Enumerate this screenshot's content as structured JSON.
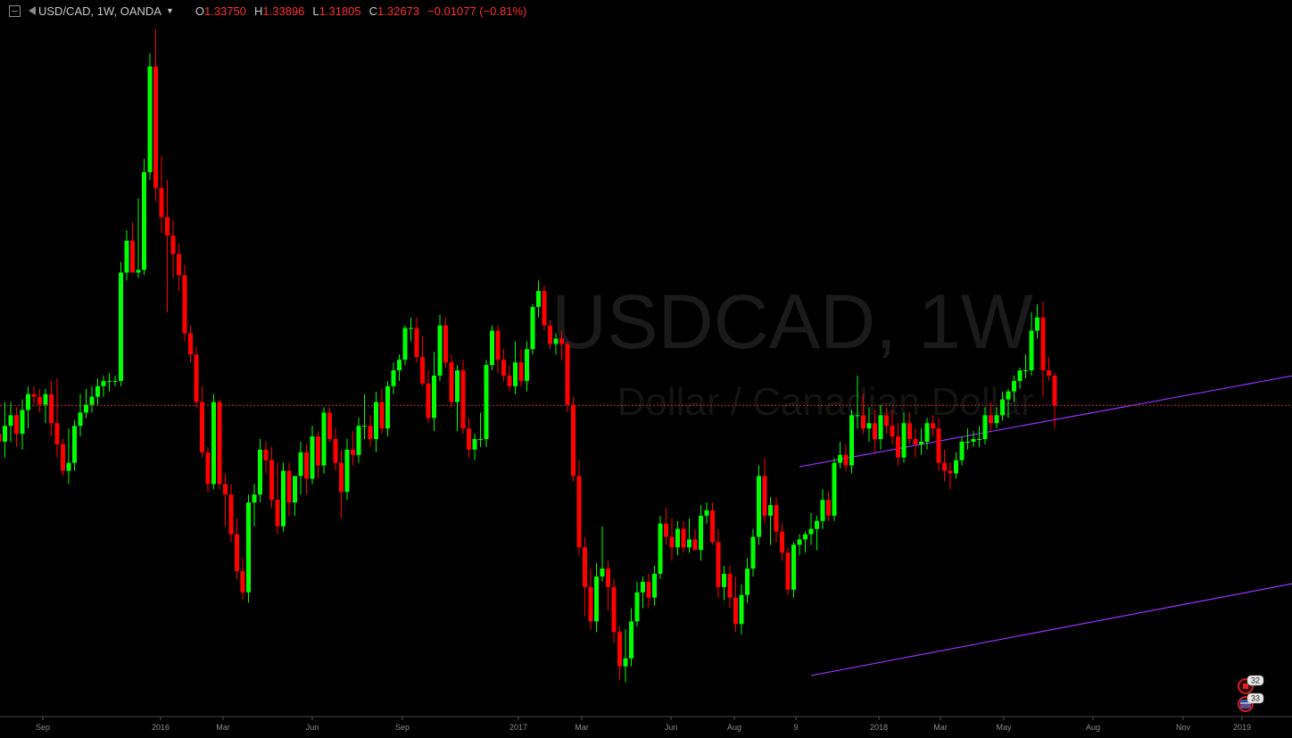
{
  "legend": {
    "symbol_title": "USD/CAD, 1W, OANDA",
    "open_label": "O",
    "open_value": "1.33750",
    "high_label": "H",
    "high_value": "1.33896",
    "low_label": "L",
    "low_value": "1.31805",
    "close_label": "C",
    "close_value": "1.32673",
    "change": "−0.01077 (−0.81%)"
  },
  "watermark": {
    "symbol": "USDCAD, 1W",
    "description": "Dollar / Canadian Dollar"
  },
  "badges": [
    {
      "icon": "canada-flag-icon",
      "label": "32"
    },
    {
      "icon": "us-flag-icon",
      "label": "33"
    }
  ],
  "colors": {
    "up": "#00ff00",
    "down": "#ff0000",
    "channel": "#9b30ff",
    "price_line": "#c83232",
    "background": "#000000"
  },
  "chart_data": {
    "type": "candlestick",
    "symbol": "USD/CAD",
    "interval": "1W",
    "x_tick_labels": [
      "Sep",
      "2016",
      "Mar",
      "Jun",
      "Sep",
      "2017",
      "Mar",
      "Jun",
      "Aug",
      "9",
      "2018",
      "Mar",
      "May",
      "Aug",
      "Nov",
      "2019"
    ],
    "current_price": 1.32673,
    "y_range": [
      1.21,
      1.47
    ],
    "channel": [
      {
        "name": "upper",
        "from": {
          "bar": 138,
          "price": 1.3035
        },
        "to": {
          "bar": 235,
          "price": 1.3428
        }
      },
      {
        "name": "lower",
        "from": {
          "bar": 140,
          "price": 1.2245
        },
        "to": {
          "bar": 235,
          "price": 1.2643
        }
      }
    ],
    "candles": [
      {
        "o": 1.316,
        "h": 1.323,
        "l": 1.291,
        "c": 1.313
      },
      {
        "o": 1.313,
        "h": 1.328,
        "l": 1.307,
        "c": 1.319
      },
      {
        "o": 1.319,
        "h": 1.328,
        "l": 1.313,
        "c": 1.323
      },
      {
        "o": 1.323,
        "h": 1.326,
        "l": 1.311,
        "c": 1.316
      },
      {
        "o": 1.316,
        "h": 1.329,
        "l": 1.31,
        "c": 1.325
      },
      {
        "o": 1.325,
        "h": 1.334,
        "l": 1.318,
        "c": 1.331
      },
      {
        "o": 1.331,
        "h": 1.334,
        "l": 1.327,
        "c": 1.33
      },
      {
        "o": 1.33,
        "h": 1.333,
        "l": 1.324,
        "c": 1.327
      },
      {
        "o": 1.327,
        "h": 1.333,
        "l": 1.32,
        "c": 1.331
      },
      {
        "o": 1.331,
        "h": 1.336,
        "l": 1.315,
        "c": 1.32
      },
      {
        "o": 1.32,
        "h": 1.337,
        "l": 1.307,
        "c": 1.312
      },
      {
        "o": 1.312,
        "h": 1.314,
        "l": 1.3,
        "c": 1.302
      },
      {
        "o": 1.302,
        "h": 1.318,
        "l": 1.297,
        "c": 1.305
      },
      {
        "o": 1.305,
        "h": 1.321,
        "l": 1.302,
        "c": 1.319
      },
      {
        "o": 1.319,
        "h": 1.331,
        "l": 1.315,
        "c": 1.324
      },
      {
        "o": 1.324,
        "h": 1.333,
        "l": 1.322,
        "c": 1.327
      },
      {
        "o": 1.327,
        "h": 1.334,
        "l": 1.324,
        "c": 1.33
      },
      {
        "o": 1.33,
        "h": 1.337,
        "l": 1.327,
        "c": 1.334
      },
      {
        "o": 1.334,
        "h": 1.338,
        "l": 1.33,
        "c": 1.336
      },
      {
        "o": 1.336,
        "h": 1.339,
        "l": 1.332,
        "c": 1.336
      },
      {
        "o": 1.336,
        "h": 1.338,
        "l": 1.334,
        "c": 1.336
      },
      {
        "o": 1.336,
        "h": 1.381,
        "l": 1.334,
        "c": 1.377
      },
      {
        "o": 1.377,
        "h": 1.393,
        "l": 1.374,
        "c": 1.389
      },
      {
        "o": 1.389,
        "h": 1.396,
        "l": 1.377,
        "c": 1.377
      },
      {
        "o": 1.377,
        "h": 1.405,
        "l": 1.375,
        "c": 1.378
      },
      {
        "o": 1.378,
        "h": 1.42,
        "l": 1.376,
        "c": 1.415
      },
      {
        "o": 1.415,
        "h": 1.46,
        "l": 1.412,
        "c": 1.455
      },
      {
        "o": 1.455,
        "h": 1.469,
        "l": 1.404,
        "c": 1.409
      },
      {
        "o": 1.409,
        "h": 1.421,
        "l": 1.392,
        "c": 1.398
      },
      {
        "o": 1.398,
        "h": 1.412,
        "l": 1.362,
        "c": 1.391
      },
      {
        "o": 1.391,
        "h": 1.397,
        "l": 1.375,
        "c": 1.384
      },
      {
        "o": 1.384,
        "h": 1.388,
        "l": 1.37,
        "c": 1.376
      },
      {
        "o": 1.376,
        "h": 1.38,
        "l": 1.351,
        "c": 1.354
      },
      {
        "o": 1.354,
        "h": 1.357,
        "l": 1.343,
        "c": 1.346
      },
      {
        "o": 1.346,
        "h": 1.349,
        "l": 1.326,
        "c": 1.328
      },
      {
        "o": 1.328,
        "h": 1.334,
        "l": 1.307,
        "c": 1.309
      },
      {
        "o": 1.309,
        "h": 1.311,
        "l": 1.294,
        "c": 1.297
      },
      {
        "o": 1.297,
        "h": 1.331,
        "l": 1.295,
        "c": 1.328
      },
      {
        "o": 1.328,
        "h": 1.329,
        "l": 1.295,
        "c": 1.297
      },
      {
        "o": 1.297,
        "h": 1.301,
        "l": 1.281,
        "c": 1.293
      },
      {
        "o": 1.293,
        "h": 1.297,
        "l": 1.275,
        "c": 1.278
      },
      {
        "o": 1.278,
        "h": 1.284,
        "l": 1.261,
        "c": 1.264
      },
      {
        "o": 1.264,
        "h": 1.269,
        "l": 1.253,
        "c": 1.256
      },
      {
        "o": 1.256,
        "h": 1.293,
        "l": 1.252,
        "c": 1.29
      },
      {
        "o": 1.29,
        "h": 1.297,
        "l": 1.281,
        "c": 1.293
      },
      {
        "o": 1.293,
        "h": 1.314,
        "l": 1.29,
        "c": 1.31
      },
      {
        "o": 1.31,
        "h": 1.313,
        "l": 1.301,
        "c": 1.306
      },
      {
        "o": 1.306,
        "h": 1.311,
        "l": 1.288,
        "c": 1.291
      },
      {
        "o": 1.291,
        "h": 1.305,
        "l": 1.278,
        "c": 1.281
      },
      {
        "o": 1.281,
        "h": 1.305,
        "l": 1.279,
        "c": 1.302
      },
      {
        "o": 1.302,
        "h": 1.305,
        "l": 1.285,
        "c": 1.29
      },
      {
        "o": 1.29,
        "h": 1.3,
        "l": 1.285,
        "c": 1.3
      },
      {
        "o": 1.3,
        "h": 1.313,
        "l": 1.293,
        "c": 1.309
      },
      {
        "o": 1.309,
        "h": 1.312,
        "l": 1.293,
        "c": 1.299
      },
      {
        "o": 1.299,
        "h": 1.319,
        "l": 1.297,
        "c": 1.315
      },
      {
        "o": 1.315,
        "h": 1.317,
        "l": 1.299,
        "c": 1.304
      },
      {
        "o": 1.304,
        "h": 1.326,
        "l": 1.301,
        "c": 1.324
      },
      {
        "o": 1.324,
        "h": 1.326,
        "l": 1.313,
        "c": 1.314
      },
      {
        "o": 1.314,
        "h": 1.318,
        "l": 1.302,
        "c": 1.305
      },
      {
        "o": 1.305,
        "h": 1.31,
        "l": 1.284,
        "c": 1.294
      },
      {
        "o": 1.294,
        "h": 1.314,
        "l": 1.291,
        "c": 1.31
      },
      {
        "o": 1.31,
        "h": 1.317,
        "l": 1.304,
        "c": 1.308
      },
      {
        "o": 1.308,
        "h": 1.322,
        "l": 1.305,
        "c": 1.319
      },
      {
        "o": 1.319,
        "h": 1.331,
        "l": 1.314,
        "c": 1.319
      },
      {
        "o": 1.319,
        "h": 1.323,
        "l": 1.311,
        "c": 1.314
      },
      {
        "o": 1.314,
        "h": 1.332,
        "l": 1.309,
        "c": 1.328
      },
      {
        "o": 1.328,
        "h": 1.333,
        "l": 1.316,
        "c": 1.318
      },
      {
        "o": 1.318,
        "h": 1.336,
        "l": 1.315,
        "c": 1.334
      },
      {
        "o": 1.334,
        "h": 1.343,
        "l": 1.331,
        "c": 1.34
      },
      {
        "o": 1.34,
        "h": 1.346,
        "l": 1.336,
        "c": 1.344
      },
      {
        "o": 1.344,
        "h": 1.357,
        "l": 1.342,
        "c": 1.356
      },
      {
        "o": 1.356,
        "h": 1.36,
        "l": 1.351,
        "c": 1.356
      },
      {
        "o": 1.356,
        "h": 1.36,
        "l": 1.343,
        "c": 1.345
      },
      {
        "o": 1.345,
        "h": 1.353,
        "l": 1.334,
        "c": 1.335
      },
      {
        "o": 1.335,
        "h": 1.34,
        "l": 1.32,
        "c": 1.322
      },
      {
        "o": 1.322,
        "h": 1.347,
        "l": 1.317,
        "c": 1.338
      },
      {
        "o": 1.338,
        "h": 1.361,
        "l": 1.336,
        "c": 1.357
      },
      {
        "o": 1.357,
        "h": 1.36,
        "l": 1.341,
        "c": 1.343
      },
      {
        "o": 1.343,
        "h": 1.346,
        "l": 1.326,
        "c": 1.328
      },
      {
        "o": 1.328,
        "h": 1.342,
        "l": 1.317,
        "c": 1.34
      },
      {
        "o": 1.34,
        "h": 1.344,
        "l": 1.316,
        "c": 1.318
      },
      {
        "o": 1.318,
        "h": 1.322,
        "l": 1.307,
        "c": 1.31
      },
      {
        "o": 1.31,
        "h": 1.316,
        "l": 1.306,
        "c": 1.314
      },
      {
        "o": 1.314,
        "h": 1.324,
        "l": 1.311,
        "c": 1.314
      },
      {
        "o": 1.314,
        "h": 1.344,
        "l": 1.311,
        "c": 1.342
      },
      {
        "o": 1.342,
        "h": 1.357,
        "l": 1.34,
        "c": 1.355
      },
      {
        "o": 1.355,
        "h": 1.357,
        "l": 1.339,
        "c": 1.344
      },
      {
        "o": 1.344,
        "h": 1.348,
        "l": 1.336,
        "c": 1.338
      },
      {
        "o": 1.338,
        "h": 1.342,
        "l": 1.332,
        "c": 1.334
      },
      {
        "o": 1.334,
        "h": 1.351,
        "l": 1.331,
        "c": 1.343
      },
      {
        "o": 1.343,
        "h": 1.348,
        "l": 1.334,
        "c": 1.336
      },
      {
        "o": 1.336,
        "h": 1.351,
        "l": 1.332,
        "c": 1.348
      },
      {
        "o": 1.348,
        "h": 1.365,
        "l": 1.346,
        "c": 1.364
      },
      {
        "o": 1.364,
        "h": 1.374,
        "l": 1.36,
        "c": 1.37
      },
      {
        "o": 1.37,
        "h": 1.372,
        "l": 1.355,
        "c": 1.357
      },
      {
        "o": 1.357,
        "h": 1.359,
        "l": 1.348,
        "c": 1.35
      },
      {
        "o": 1.35,
        "h": 1.354,
        "l": 1.346,
        "c": 1.352
      },
      {
        "o": 1.352,
        "h": 1.355,
        "l": 1.344,
        "c": 1.35
      },
      {
        "o": 1.35,
        "h": 1.351,
        "l": 1.324,
        "c": 1.327
      },
      {
        "o": 1.327,
        "h": 1.33,
        "l": 1.298,
        "c": 1.3
      },
      {
        "o": 1.3,
        "h": 1.306,
        "l": 1.27,
        "c": 1.273
      },
      {
        "o": 1.273,
        "h": 1.277,
        "l": 1.247,
        "c": 1.258
      },
      {
        "o": 1.258,
        "h": 1.265,
        "l": 1.242,
        "c": 1.245
      },
      {
        "o": 1.245,
        "h": 1.267,
        "l": 1.241,
        "c": 1.262
      },
      {
        "o": 1.262,
        "h": 1.281,
        "l": 1.26,
        "c": 1.265
      },
      {
        "o": 1.265,
        "h": 1.268,
        "l": 1.249,
        "c": 1.258
      },
      {
        "o": 1.258,
        "h": 1.261,
        "l": 1.237,
        "c": 1.241
      },
      {
        "o": 1.241,
        "h": 1.243,
        "l": 1.223,
        "c": 1.228
      },
      {
        "o": 1.228,
        "h": 1.242,
        "l": 1.222,
        "c": 1.231
      },
      {
        "o": 1.231,
        "h": 1.25,
        "l": 1.228,
        "c": 1.245
      },
      {
        "o": 1.245,
        "h": 1.26,
        "l": 1.243,
        "c": 1.256
      },
      {
        "o": 1.256,
        "h": 1.262,
        "l": 1.25,
        "c": 1.26
      },
      {
        "o": 1.26,
        "h": 1.263,
        "l": 1.25,
        "c": 1.254
      },
      {
        "o": 1.254,
        "h": 1.266,
        "l": 1.251,
        "c": 1.263
      },
      {
        "o": 1.263,
        "h": 1.285,
        "l": 1.261,
        "c": 1.282
      },
      {
        "o": 1.282,
        "h": 1.288,
        "l": 1.274,
        "c": 1.277
      },
      {
        "o": 1.277,
        "h": 1.284,
        "l": 1.268,
        "c": 1.273
      },
      {
        "o": 1.273,
        "h": 1.283,
        "l": 1.27,
        "c": 1.28
      },
      {
        "o": 1.28,
        "h": 1.283,
        "l": 1.271,
        "c": 1.273
      },
      {
        "o": 1.273,
        "h": 1.284,
        "l": 1.271,
        "c": 1.276
      },
      {
        "o": 1.276,
        "h": 1.28,
        "l": 1.272,
        "c": 1.272
      },
      {
        "o": 1.272,
        "h": 1.289,
        "l": 1.268,
        "c": 1.285
      },
      {
        "o": 1.285,
        "h": 1.29,
        "l": 1.282,
        "c": 1.287
      },
      {
        "o": 1.287,
        "h": 1.29,
        "l": 1.274,
        "c": 1.275
      },
      {
        "o": 1.275,
        "h": 1.28,
        "l": 1.254,
        "c": 1.258
      },
      {
        "o": 1.258,
        "h": 1.266,
        "l": 1.253,
        "c": 1.263
      },
      {
        "o": 1.263,
        "h": 1.266,
        "l": 1.25,
        "c": 1.254
      },
      {
        "o": 1.254,
        "h": 1.262,
        "l": 1.241,
        "c": 1.244
      },
      {
        "o": 1.244,
        "h": 1.259,
        "l": 1.24,
        "c": 1.255
      },
      {
        "o": 1.255,
        "h": 1.269,
        "l": 1.252,
        "c": 1.265
      },
      {
        "o": 1.265,
        "h": 1.28,
        "l": 1.262,
        "c": 1.277
      },
      {
        "o": 1.277,
        "h": 1.304,
        "l": 1.274,
        "c": 1.3
      },
      {
        "o": 1.3,
        "h": 1.307,
        "l": 1.282,
        "c": 1.285
      },
      {
        "o": 1.285,
        "h": 1.292,
        "l": 1.274,
        "c": 1.289
      },
      {
        "o": 1.289,
        "h": 1.292,
        "l": 1.275,
        "c": 1.279
      },
      {
        "o": 1.279,
        "h": 1.282,
        "l": 1.268,
        "c": 1.271
      },
      {
        "o": 1.271,
        "h": 1.273,
        "l": 1.255,
        "c": 1.257
      },
      {
        "o": 1.257,
        "h": 1.275,
        "l": 1.254,
        "c": 1.274
      },
      {
        "o": 1.274,
        "h": 1.278,
        "l": 1.27,
        "c": 1.276
      },
      {
        "o": 1.276,
        "h": 1.279,
        "l": 1.271,
        "c": 1.278
      },
      {
        "o": 1.278,
        "h": 1.286,
        "l": 1.274,
        "c": 1.28
      },
      {
        "o": 1.28,
        "h": 1.285,
        "l": 1.272,
        "c": 1.283
      },
      {
        "o": 1.283,
        "h": 1.295,
        "l": 1.28,
        "c": 1.291
      },
      {
        "o": 1.291,
        "h": 1.294,
        "l": 1.283,
        "c": 1.285
      },
      {
        "o": 1.285,
        "h": 1.307,
        "l": 1.283,
        "c": 1.305
      },
      {
        "o": 1.305,
        "h": 1.313,
        "l": 1.303,
        "c": 1.308
      },
      {
        "o": 1.308,
        "h": 1.312,
        "l": 1.302,
        "c": 1.304
      },
      {
        "o": 1.304,
        "h": 1.325,
        "l": 1.301,
        "c": 1.323
      },
      {
        "o": 1.323,
        "h": 1.338,
        "l": 1.318,
        "c": 1.323
      },
      {
        "o": 1.323,
        "h": 1.331,
        "l": 1.316,
        "c": 1.318
      },
      {
        "o": 1.318,
        "h": 1.326,
        "l": 1.313,
        "c": 1.32
      },
      {
        "o": 1.32,
        "h": 1.325,
        "l": 1.309,
        "c": 1.314
      },
      {
        "o": 1.314,
        "h": 1.327,
        "l": 1.31,
        "c": 1.323
      },
      {
        "o": 1.323,
        "h": 1.326,
        "l": 1.316,
        "c": 1.319
      },
      {
        "o": 1.319,
        "h": 1.325,
        "l": 1.312,
        "c": 1.315
      },
      {
        "o": 1.315,
        "h": 1.32,
        "l": 1.304,
        "c": 1.307
      },
      {
        "o": 1.307,
        "h": 1.324,
        "l": 1.305,
        "c": 1.32
      },
      {
        "o": 1.32,
        "h": 1.324,
        "l": 1.312,
        "c": 1.314
      },
      {
        "o": 1.314,
        "h": 1.318,
        "l": 1.307,
        "c": 1.312
      },
      {
        "o": 1.312,
        "h": 1.318,
        "l": 1.308,
        "c": 1.313
      },
      {
        "o": 1.313,
        "h": 1.322,
        "l": 1.31,
        "c": 1.32
      },
      {
        "o": 1.32,
        "h": 1.323,
        "l": 1.315,
        "c": 1.318
      },
      {
        "o": 1.318,
        "h": 1.322,
        "l": 1.302,
        "c": 1.305
      },
      {
        "o": 1.305,
        "h": 1.31,
        "l": 1.298,
        "c": 1.302
      },
      {
        "o": 1.302,
        "h": 1.305,
        "l": 1.295,
        "c": 1.301
      },
      {
        "o": 1.301,
        "h": 1.309,
        "l": 1.299,
        "c": 1.306
      },
      {
        "o": 1.306,
        "h": 1.315,
        "l": 1.304,
        "c": 1.313
      },
      {
        "o": 1.313,
        "h": 1.318,
        "l": 1.31,
        "c": 1.313
      },
      {
        "o": 1.313,
        "h": 1.317,
        "l": 1.311,
        "c": 1.314
      },
      {
        "o": 1.314,
        "h": 1.319,
        "l": 1.311,
        "c": 1.314
      },
      {
        "o": 1.314,
        "h": 1.326,
        "l": 1.312,
        "c": 1.323
      },
      {
        "o": 1.323,
        "h": 1.328,
        "l": 1.317,
        "c": 1.32
      },
      {
        "o": 1.32,
        "h": 1.326,
        "l": 1.318,
        "c": 1.323
      },
      {
        "o": 1.323,
        "h": 1.332,
        "l": 1.321,
        "c": 1.329
      },
      {
        "o": 1.329,
        "h": 1.333,
        "l": 1.322,
        "c": 1.332
      },
      {
        "o": 1.332,
        "h": 1.338,
        "l": 1.328,
        "c": 1.336
      },
      {
        "o": 1.336,
        "h": 1.341,
        "l": 1.333,
        "c": 1.34
      },
      {
        "o": 1.34,
        "h": 1.346,
        "l": 1.337,
        "c": 1.34
      },
      {
        "o": 1.34,
        "h": 1.362,
        "l": 1.338,
        "c": 1.355
      },
      {
        "o": 1.355,
        "h": 1.365,
        "l": 1.352,
        "c": 1.36
      },
      {
        "o": 1.36,
        "h": 1.366,
        "l": 1.33,
        "c": 1.34
      },
      {
        "o": 1.34,
        "h": 1.345,
        "l": 1.336,
        "c": 1.338
      },
      {
        "o": 1.338,
        "h": 1.339,
        "l": 1.318,
        "c": 1.3267
      }
    ]
  }
}
